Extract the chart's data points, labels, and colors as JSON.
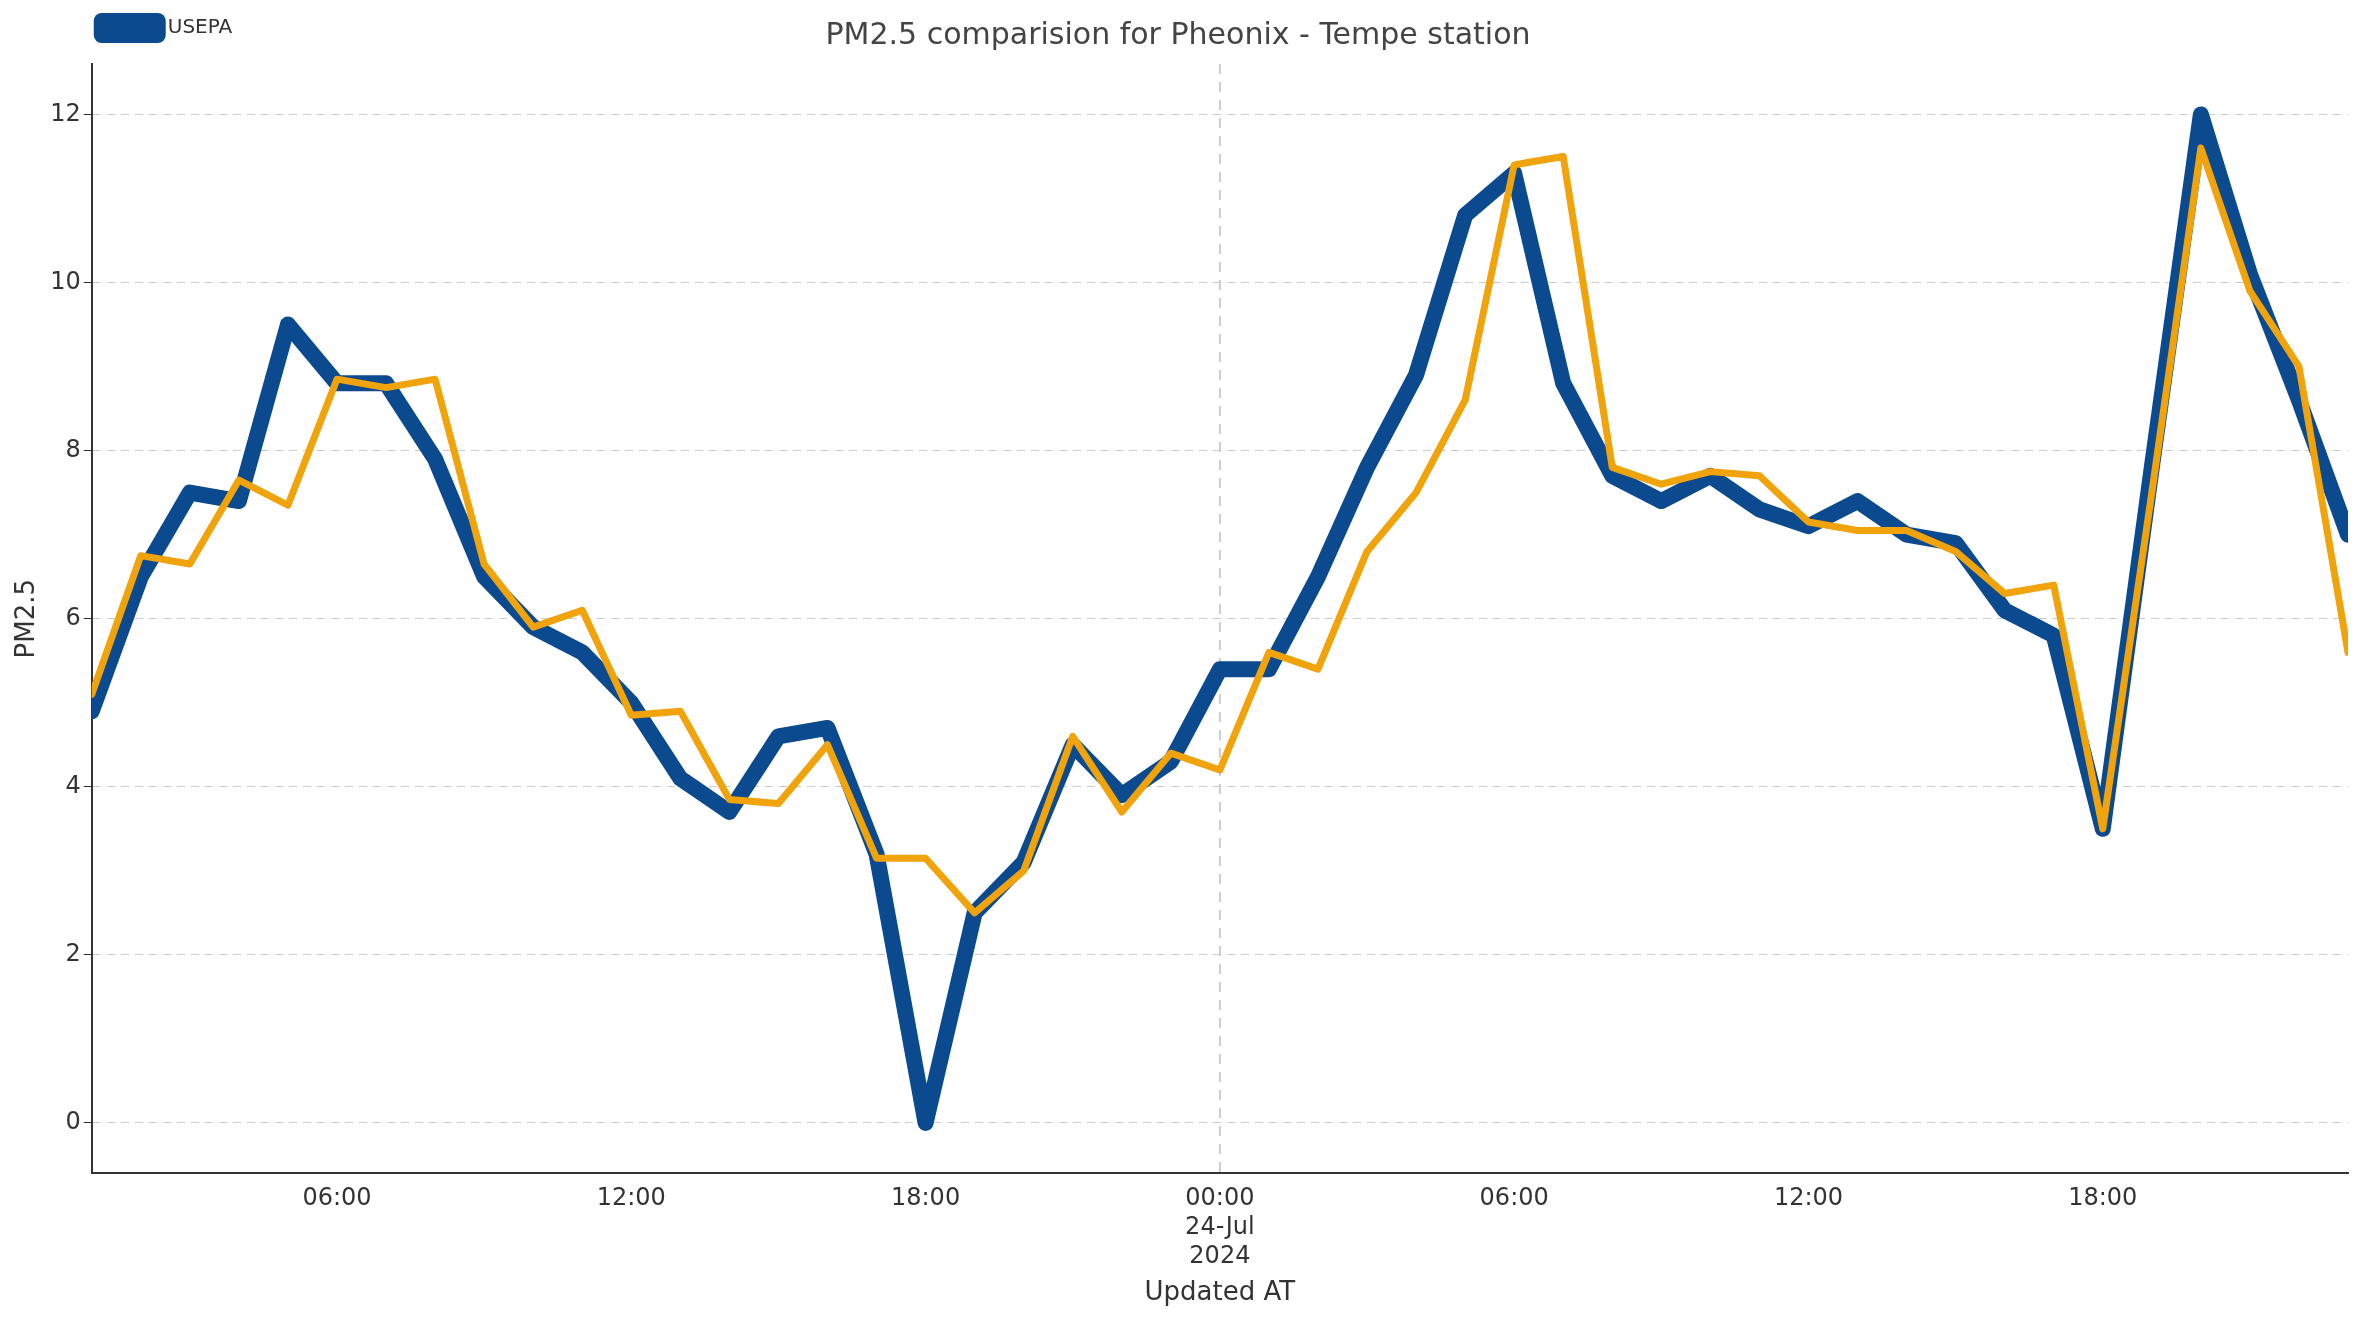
{
  "chart_data": {
    "type": "line",
    "title": "PM2.5 comparision for Pheonix - Tempe station",
    "xlabel": "Updated AT",
    "ylabel": "PM2.5",
    "x": [
      "2024-07-23T01:00",
      "2024-07-23T02:00",
      "2024-07-23T03:00",
      "2024-07-23T04:00",
      "2024-07-23T05:00",
      "2024-07-23T06:00",
      "2024-07-23T07:00",
      "2024-07-23T08:00",
      "2024-07-23T09:00",
      "2024-07-23T10:00",
      "2024-07-23T11:00",
      "2024-07-23T12:00",
      "2024-07-23T13:00",
      "2024-07-23T14:00",
      "2024-07-23T15:00",
      "2024-07-23T16:00",
      "2024-07-23T17:00",
      "2024-07-23T18:00",
      "2024-07-23T19:00",
      "2024-07-23T20:00",
      "2024-07-23T21:00",
      "2024-07-23T22:00",
      "2024-07-23T23:00",
      "2024-07-24T00:00",
      "2024-07-24T01:00",
      "2024-07-24T02:00",
      "2024-07-24T03:00",
      "2024-07-24T04:00",
      "2024-07-24T05:00",
      "2024-07-24T06:00",
      "2024-07-24T07:00",
      "2024-07-24T08:00",
      "2024-07-24T09:00",
      "2024-07-24T10:00",
      "2024-07-24T11:00",
      "2024-07-24T12:00",
      "2024-07-24T13:00",
      "2024-07-24T14:00",
      "2024-07-24T15:00",
      "2024-07-24T16:00",
      "2024-07-24T17:00",
      "2024-07-24T18:00",
      "2024-07-24T19:00",
      "2024-07-24T20:00",
      "2024-07-24T21:00",
      "2024-07-24T22:00",
      "2024-07-24T23:00"
    ],
    "series": [
      {
        "name": "USEPA",
        "color": "#0b4a8e",
        "values": [
          4.9,
          6.5,
          7.5,
          7.4,
          9.5,
          8.8,
          8.8,
          7.9,
          6.5,
          5.9,
          5.6,
          5.0,
          4.1,
          3.7,
          4.6,
          4.7,
          3.2,
          0,
          2.5,
          3.1,
          4.5,
          3.9,
          4.3,
          5.4,
          5.4,
          6.5,
          7.8,
          8.9,
          10.8,
          11.3,
          8.8,
          7.7,
          7.4,
          7.7,
          7.3,
          7.1,
          7.4,
          7.0,
          6.9,
          6.1,
          5.8,
          3.5,
          7.8,
          12.0,
          10.1,
          8.6,
          7.0
        ]
      },
      {
        "color": "#f0a30a",
        "values": [
          5.1,
          6.75,
          6.65,
          7.65,
          7.35,
          8.85,
          8.75,
          8.85,
          6.65,
          5.9,
          6.1,
          4.85,
          4.9,
          3.85,
          3.8,
          4.5,
          3.15,
          3.15,
          2.5,
          3.0,
          4.6,
          3.7,
          4.4,
          4.2,
          5.6,
          5.4,
          6.8,
          7.5,
          8.6,
          11.4,
          11.5,
          7.8,
          7.6,
          7.75,
          7.7,
          7.15,
          7.05,
          7.05,
          6.8,
          6.3,
          6.4,
          3.5,
          7.5,
          11.6,
          9.9,
          9.0,
          5.6
        ]
      }
    ],
    "xlim": [
      "2024-07-23T01:00",
      "2024-07-24T23:00"
    ],
    "xticks": [
      {
        "value": "2024-07-23T06:00",
        "label": "06:00"
      },
      {
        "value": "2024-07-23T12:00",
        "label": "12:00"
      },
      {
        "value": "2024-07-23T18:00",
        "label": "18:00"
      },
      {
        "value": "2024-07-24T00:00",
        "label": "00:00\n24-Jul\n2024"
      },
      {
        "value": "2024-07-24T06:00",
        "label": "06:00"
      },
      {
        "value": "2024-07-24T12:00",
        "label": "12:00"
      },
      {
        "value": "2024-07-24T18:00",
        "label": "18:00"
      }
    ],
    "ylim": [
      -0.6,
      12.6
    ],
    "yticks": [
      0,
      2,
      4,
      6,
      8,
      10,
      12
    ],
    "grid": "y",
    "legend": "top left",
    "line_style": "solid",
    "marker": "none",
    "ref_lines": [
      {
        "axis": "x",
        "value": "2024-07-24T00:00",
        "line_style": "dashed",
        "color": "#cccccc"
      }
    ]
  }
}
